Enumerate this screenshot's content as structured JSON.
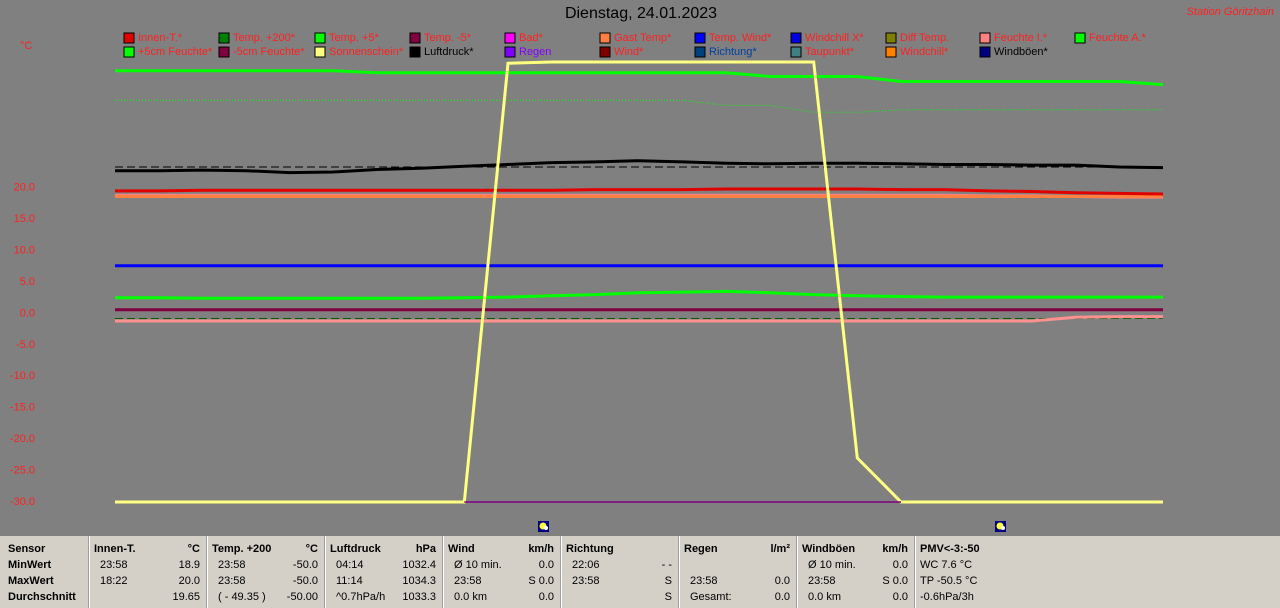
{
  "header": {
    "title": "Dienstag, 24.01.2023",
    "station": "Station Göritzhain",
    "unit": "°C"
  },
  "legend": [
    {
      "name": "Innen-T.*",
      "color": "#e00000",
      "text_color": "#ff2020"
    },
    {
      "name": "Temp. +200*",
      "color": "#008000",
      "text_color": "#ff2020"
    },
    {
      "name": "Temp. +5*",
      "color": "#00ff00",
      "text_color": "#ff2020"
    },
    {
      "name": "Temp. -5*",
      "color": "#800040",
      "text_color": "#ff2020"
    },
    {
      "name": "Bad*",
      "color": "#ff00ff",
      "text_color": "#ff2020"
    },
    {
      "name": "Gast Temp*",
      "color": "#ff8040",
      "text_color": "#ff2020"
    },
    {
      "name": "Temp. Wind*",
      "color": "#0000ff",
      "text_color": "#ff2020"
    },
    {
      "name": "Windchill X*",
      "color": "#0000e0",
      "text_color": "#ff2020"
    },
    {
      "name": "Diff Temp.",
      "color": "#808000",
      "text_color": "#ff2020"
    },
    {
      "name": "Feuchte I.*",
      "color": "#ff8080",
      "text_color": "#ff2020"
    },
    {
      "name": "Feuchte A.*",
      "color": "#00ff00",
      "text_color": "#ff2020"
    },
    {
      "name": "+5cm Feuchte*",
      "color": "#00ff00",
      "text_color": "#ff2020"
    },
    {
      "name": "-5cm Feuchte*",
      "color": "#800040",
      "text_color": "#ff2020"
    },
    {
      "name": "Sonnenschein*",
      "color": "#ffff80",
      "text_color": "#ff2020"
    },
    {
      "name": "Luftdruck*",
      "color": "#000000",
      "text_color": "#000000"
    },
    {
      "name": "Regen",
      "color": "#8000ff",
      "text_color": "#8000ff"
    },
    {
      "name": "Wind*",
      "color": "#800000",
      "text_color": "#ff2020"
    },
    {
      "name": "Richtung*",
      "color": "#004080",
      "text_color": "#0040a0"
    },
    {
      "name": "Taupunkt*",
      "color": "#408080",
      "text_color": "#ff2020"
    },
    {
      "name": "Windchill*",
      "color": "#ff8000",
      "text_color": "#ff2020"
    },
    {
      "name": "Windböen*",
      "color": "#000080",
      "text_color": "#000000"
    }
  ],
  "chart_data": {
    "type": "line",
    "ylim": [
      -30,
      40
    ],
    "yticks": [
      {
        "value": 20,
        "label": "20.0"
      },
      {
        "value": 15,
        "label": "15.0"
      },
      {
        "value": 10,
        "label": "10.0"
      },
      {
        "value": 5,
        "label": "5.0"
      },
      {
        "value": 0,
        "label": "0.0"
      },
      {
        "value": -5,
        "label": "-5.0"
      },
      {
        "value": -10,
        "label": "-10.0"
      },
      {
        "value": -15,
        "label": "-15.0"
      },
      {
        "value": -20,
        "label": "-20.0"
      },
      {
        "value": -25,
        "label": "-25.0"
      },
      {
        "value": -30,
        "label": "-30.0"
      }
    ],
    "categories": [
      null,
      null,
      null,
      null,
      null,
      null,
      null,
      null,
      null,
      null,
      null,
      null,
      null,
      null,
      null,
      null,
      null,
      null,
      null,
      null,
      null,
      null,
      null,
      null,
      null
    ],
    "series": [
      {
        "color": "#00ff00",
        "style": "solid",
        "values": [
          38.6,
          38.6,
          38.6,
          38.6,
          38.6,
          38.6,
          38.3,
          38.3,
          38.3,
          38.3,
          38.3,
          38.3,
          38.3,
          38.3,
          38.3,
          37.7,
          37.7,
          37.7,
          36.9,
          36.9,
          36.9,
          36.9,
          36.9,
          36.9,
          36.4
        ]
      },
      {
        "color": "#00ff00",
        "style": "dotted",
        "values": [
          33.9,
          33.9,
          33.9,
          33.9,
          33.9,
          33.9,
          33.9,
          33.9,
          33.9,
          33.9,
          33.9,
          33.9,
          33.9,
          33.9,
          33.1,
          33.1,
          32.0,
          32.0,
          32.4,
          32.4,
          32.4,
          32.4,
          32.4,
          32.4,
          32.4
        ]
      },
      {
        "color": "#000000",
        "style": "dashed",
        "values": [
          23.3,
          23.3,
          23.3,
          23.3,
          23.3,
          23.3,
          23.3,
          23.3,
          23.3,
          23.3,
          23.3,
          23.3,
          23.3,
          23.3,
          23.3,
          23.3,
          23.3,
          23.3,
          23.3,
          23.3,
          23.3,
          23.3,
          23.3,
          23.3,
          23.3
        ]
      },
      {
        "color": "#000000",
        "style": "solid",
        "values": [
          22.7,
          22.7,
          22.8,
          22.7,
          22.4,
          22.5,
          22.9,
          23.1,
          23.4,
          23.7,
          24.0,
          24.1,
          24.3,
          24.1,
          23.9,
          23.8,
          23.9,
          23.9,
          23.8,
          23.7,
          23.7,
          23.6,
          23.6,
          23.3,
          23.2
        ]
      },
      {
        "color": "#ff8080",
        "style": "solid",
        "values": [
          18.8,
          18.8,
          18.8,
          18.8,
          18.8,
          18.8,
          18.8,
          18.8,
          18.8,
          18.8,
          18.8,
          18.8,
          18.8,
          18.8,
          18.8,
          18.8,
          18.8,
          18.8,
          18.8,
          18.8,
          18.7,
          18.7,
          18.6,
          18.5,
          18.5
        ]
      },
      {
        "color": "#ff8040",
        "style": "solid",
        "values": [
          18.6,
          18.6,
          18.6,
          18.6,
          18.6,
          18.6,
          18.6,
          18.6,
          18.6,
          18.6,
          18.6,
          18.6,
          18.6,
          18.6,
          18.6,
          18.6,
          18.6,
          18.6,
          18.6,
          18.6,
          18.6,
          18.6,
          18.6,
          18.6,
          18.6
        ]
      },
      {
        "color": "#e00000",
        "style": "solid",
        "values": [
          19.5,
          19.5,
          19.6,
          19.6,
          19.6,
          19.6,
          19.6,
          19.6,
          19.6,
          19.6,
          19.6,
          19.7,
          19.7,
          19.7,
          19.8,
          19.8,
          19.8,
          19.8,
          19.7,
          19.7,
          19.5,
          19.4,
          19.2,
          19.1,
          19.0
        ]
      },
      {
        "color": "#0000ff",
        "style": "solid",
        "values": [
          7.6,
          7.6,
          7.6,
          7.6,
          7.6,
          7.6,
          7.6,
          7.6,
          7.6,
          7.6,
          7.6,
          7.6,
          7.6,
          7.6,
          7.6,
          7.6,
          7.6,
          7.6,
          7.6,
          7.6,
          7.6,
          7.6,
          7.6,
          7.6,
          7.6
        ]
      },
      {
        "color": "#00ff00",
        "style": "solid",
        "values": [
          2.5,
          2.5,
          2.4,
          2.4,
          2.4,
          2.4,
          2.4,
          2.4,
          2.5,
          2.6,
          2.8,
          3.0,
          3.3,
          3.4,
          3.5,
          3.3,
          3.0,
          2.8,
          2.7,
          2.6,
          2.6,
          2.6,
          2.6,
          2.6,
          2.6
        ]
      },
      {
        "color": "#800040",
        "style": "solid",
        "values": [
          0.6,
          0.6,
          0.6,
          0.6,
          0.6,
          0.6,
          0.6,
          0.6,
          0.6,
          0.6,
          0.6,
          0.6,
          0.6,
          0.6,
          0.6,
          0.6,
          0.6,
          0.6,
          0.6,
          0.6,
          0.6,
          0.6,
          0.6,
          0.6,
          0.6
        ]
      },
      {
        "color": "#006000",
        "style": "dashed",
        "values": [
          -0.8,
          -0.8,
          -0.8,
          -0.8,
          -0.8,
          -0.8,
          -0.8,
          -0.8,
          -0.8,
          -0.8,
          -0.8,
          -0.8,
          -0.8,
          -0.8,
          -0.8,
          -0.8,
          -0.8,
          -0.8,
          -0.8,
          -0.8,
          -0.8,
          -0.8,
          -0.8,
          -0.8,
          -0.8
        ]
      },
      {
        "color": "#ff9090",
        "style": "solid",
        "values": [
          -1.2,
          -1.2,
          -1.2,
          -1.2,
          -1.2,
          -1.2,
          -1.2,
          -1.2,
          -1.2,
          -1.2,
          -1.2,
          -1.2,
          -1.2,
          -1.2,
          -1.2,
          -1.2,
          -1.2,
          -1.2,
          -1.2,
          -1.2,
          -1.2,
          -1.2,
          -0.6,
          -0.5,
          -0.5
        ]
      },
      {
        "color": "#ffff80",
        "style": "solid",
        "values": [
          -30,
          -30,
          -30,
          -30,
          -30,
          -30,
          -30,
          -30,
          -30,
          39.8,
          40,
          40,
          40,
          40,
          40,
          40,
          40,
          -23,
          -30,
          -30,
          -30,
          -30,
          -30,
          -30,
          -30
        ]
      },
      {
        "color": "#800080",
        "style": "thin",
        "values": [
          null,
          null,
          null,
          null,
          null,
          null,
          null,
          null,
          -30,
          -30,
          -30,
          -30,
          -30,
          -30,
          -30,
          -30,
          -30,
          -30,
          -30,
          null,
          null,
          null,
          null,
          null,
          null
        ]
      }
    ]
  },
  "table": {
    "sensor": [
      "Sensor",
      "MinWert",
      "MaxWert",
      "Durchschnitt"
    ],
    "groups": [
      {
        "title": "Innen-T.",
        "unit": "°C",
        "rows": [
          {
            "l": "23:58",
            "r": "18.9"
          },
          {
            "l": "18:22",
            "r": "20.0"
          },
          {
            "r": "19.65"
          }
        ]
      },
      {
        "title": "Temp. +200",
        "unit": "°C",
        "rows": [
          {
            "l": "23:58",
            "r": "-50.0"
          },
          {
            "l": "23:58",
            "r": "-50.0"
          },
          {
            "l": "( - 49.35 )",
            "r": "-50.00"
          }
        ]
      },
      {
        "title": "Luftdruck",
        "unit": "hPa",
        "rows": [
          {
            "l": "04:14",
            "r": "1032.4"
          },
          {
            "l": "11:14",
            "r": "1034.3"
          },
          {
            "l": "^0.7hPa/h",
            "r": "1033.3"
          }
        ]
      },
      {
        "title": "Wind",
        "unit": "km/h",
        "rows": [
          {
            "l": "Ø 10 min.",
            "r": "0.0"
          },
          {
            "l": "23:58",
            "r": "S 0.0"
          },
          {
            "l": "0.0 km",
            "r": "0.0"
          }
        ]
      },
      {
        "title": "Richtung",
        "rows": [
          {
            "l": "22:06",
            "r": "- -"
          },
          {
            "l": "23:58",
            "r": "S"
          },
          {
            "r": "S"
          }
        ]
      },
      {
        "title": "Regen",
        "unit": "l/m²",
        "rows": [
          {},
          {
            "l": "23:58",
            "r": "0.0"
          },
          {
            "l": "Gesamt:",
            "r": "0.0"
          }
        ]
      },
      {
        "title": "Windböen",
        "unit": "km/h",
        "rows": [
          {
            "l": "Ø 10 min.",
            "r": "0.0"
          },
          {
            "l": "23:58",
            "r": "S 0.0"
          },
          {
            "l": "0.0 km",
            "r": "0.0"
          }
        ]
      },
      {
        "title": "PMV<-3:-50",
        "rows": [
          {
            "l": "WC 7.6 °C"
          },
          {
            "l": "TP -50.5 °C"
          },
          {
            "l": "-0.6hPa/3h"
          }
        ]
      }
    ]
  }
}
